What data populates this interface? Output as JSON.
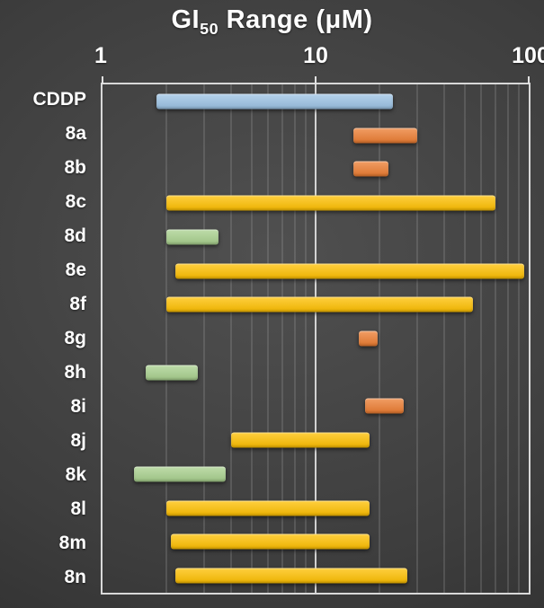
{
  "chart_data": {
    "type": "bar",
    "variant": "horizontal-range",
    "title": {
      "prefix": "GI",
      "sub": "50",
      "suffix": " Range (μM)"
    },
    "x_axis": {
      "scale": "log",
      "min": 1,
      "max": 100,
      "ticks": [
        {
          "label": "1",
          "value": 1
        },
        {
          "label": "10",
          "value": 10
        },
        {
          "label": "100",
          "value": 100
        }
      ]
    },
    "grid": "log-minor-vertical",
    "legend": "none",
    "colors": {
      "blue": "#9CC3E5",
      "orange": "#ED7D31",
      "gold": "#FFC000",
      "green": "#A9D18E"
    },
    "bars": [
      {
        "label": "CDDP",
        "low": 1.8,
        "high": 23,
        "color": "blue"
      },
      {
        "label": "8a",
        "low": 15,
        "high": 30,
        "color": "orange"
      },
      {
        "label": "8b",
        "low": 15,
        "high": 22,
        "color": "orange"
      },
      {
        "label": "8c",
        "low": 2.0,
        "high": 70,
        "color": "gold"
      },
      {
        "label": "8d",
        "low": 2.0,
        "high": 3.5,
        "color": "green"
      },
      {
        "label": "8e",
        "low": 2.2,
        "high": 95,
        "color": "gold"
      },
      {
        "label": "8f",
        "low": 2.0,
        "high": 55,
        "color": "gold"
      },
      {
        "label": "8g",
        "low": 16,
        "high": 19.5,
        "color": "orange"
      },
      {
        "label": "8h",
        "low": 1.6,
        "high": 2.8,
        "color": "green"
      },
      {
        "label": "8i",
        "low": 17,
        "high": 26,
        "color": "orange"
      },
      {
        "label": "8j",
        "low": 4.0,
        "high": 18,
        "color": "gold"
      },
      {
        "label": "8k",
        "low": 1.4,
        "high": 3.8,
        "color": "green"
      },
      {
        "label": "8l",
        "low": 2.0,
        "high": 18,
        "color": "gold"
      },
      {
        "label": "8m",
        "low": 2.1,
        "high": 18,
        "color": "gold"
      },
      {
        "label": "8n",
        "low": 2.2,
        "high": 27,
        "color": "gold"
      }
    ]
  }
}
